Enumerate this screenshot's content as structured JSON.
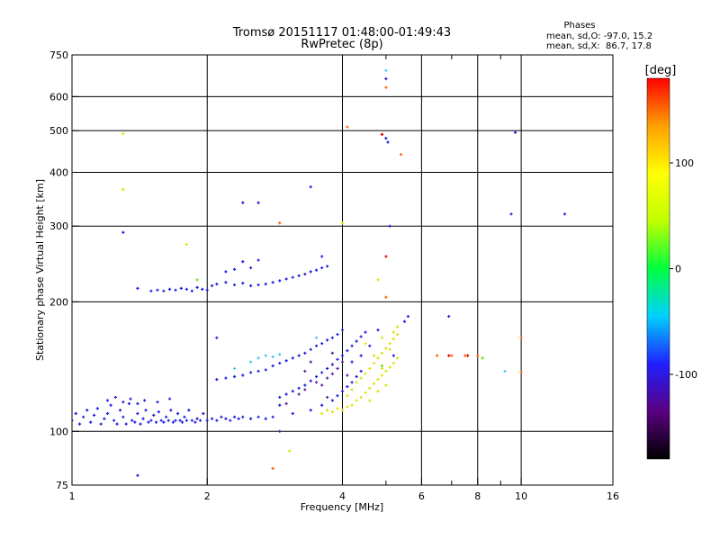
{
  "chart_data": {
    "type": "scatter",
    "title": "Tromsø 20151117 01:48:00-01:49:43",
    "subtitle": "RwPretec (8p)",
    "xlabel": "Frequency [MHz]",
    "ylabel": "Stationary phase Virtual Height [km]",
    "x_scale": "log",
    "y_scale": "log",
    "xlim": [
      1,
      16
    ],
    "ylim": [
      75,
      750
    ],
    "x_ticks": [
      {
        "value": 1,
        "label": "1"
      },
      {
        "value": 2,
        "label": "2"
      },
      {
        "value": 4,
        "label": "4"
      },
      {
        "value": 6,
        "label": "6"
      },
      {
        "value": 8,
        "label": "8"
      },
      {
        "value": 10,
        "label": "10"
      },
      {
        "value": 16,
        "label": "16"
      }
    ],
    "y_ticks": [
      {
        "value": 75,
        "label": "75"
      },
      {
        "value": 100,
        "label": "100"
      },
      {
        "value": 200,
        "label": "200"
      },
      {
        "value": 300,
        "label": "300"
      },
      {
        "value": 400,
        "label": "400"
      },
      {
        "value": 500,
        "label": "500"
      },
      {
        "value": 600,
        "label": "600"
      },
      {
        "value": 750,
        "label": "750"
      }
    ],
    "x_gridlines": [
      2,
      4,
      6,
      8,
      10
    ],
    "x_minor_ticks": [
      5,
      7,
      9
    ],
    "y_gridlines": [
      100,
      200,
      300,
      400,
      500,
      600
    ],
    "grid": true,
    "phase_stats": {
      "heading": "Phases",
      "line_o": "mean, sd,O: -97.0, 15.2",
      "line_x": "mean, sd,X:  86.7, 17.8"
    },
    "colorbar": {
      "label": "[deg]",
      "range": [
        -180,
        180
      ],
      "ticks": [
        {
          "value": 100,
          "label": "100"
        },
        {
          "value": 0,
          "label": "0"
        },
        {
          "value": -100,
          "label": "-100"
        }
      ],
      "colors": [
        "#000000",
        "#5a0080",
        "#2020ff",
        "#00d0ff",
        "#00ff40",
        "#c0ff00",
        "#ffff00",
        "#ffa000",
        "#ff0000"
      ]
    },
    "series": [
      {
        "color": "#1a1ae0",
        "points": [
          [
            1.0,
            106
          ],
          [
            1.02,
            110
          ],
          [
            1.04,
            104
          ],
          [
            1.06,
            108
          ],
          [
            1.08,
            112
          ],
          [
            1.1,
            105
          ],
          [
            1.12,
            109
          ],
          [
            1.14,
            113
          ],
          [
            1.16,
            104
          ],
          [
            1.18,
            107
          ],
          [
            1.2,
            110
          ],
          [
            1.22,
            115
          ],
          [
            1.24,
            106
          ],
          [
            1.26,
            104
          ],
          [
            1.28,
            112
          ],
          [
            1.3,
            108
          ],
          [
            1.32,
            104
          ],
          [
            1.34,
            116
          ],
          [
            1.36,
            106
          ],
          [
            1.38,
            105
          ],
          [
            1.4,
            110
          ],
          [
            1.42,
            104
          ],
          [
            1.44,
            107
          ],
          [
            1.46,
            112
          ],
          [
            1.48,
            105
          ],
          [
            1.5,
            106
          ],
          [
            1.52,
            109
          ],
          [
            1.54,
            105
          ],
          [
            1.56,
            111
          ],
          [
            1.58,
            106
          ],
          [
            1.6,
            105
          ],
          [
            1.62,
            108
          ],
          [
            1.64,
            106
          ],
          [
            1.66,
            112
          ],
          [
            1.68,
            105
          ],
          [
            1.7,
            106
          ],
          [
            1.72,
            110
          ],
          [
            1.74,
            106
          ],
          [
            1.76,
            105
          ],
          [
            1.78,
            108
          ],
          [
            1.8,
            106
          ],
          [
            1.82,
            112
          ],
          [
            1.85,
            106
          ],
          [
            1.88,
            105
          ],
          [
            1.9,
            107
          ],
          [
            1.93,
            106
          ],
          [
            1.96,
            110
          ],
          [
            2.0,
            106
          ],
          [
            2.05,
            107
          ],
          [
            2.1,
            106
          ],
          [
            2.15,
            108
          ],
          [
            2.2,
            107
          ],
          [
            2.25,
            106
          ],
          [
            2.3,
            108
          ],
          [
            2.35,
            107
          ],
          [
            2.4,
            108
          ],
          [
            2.5,
            107
          ],
          [
            2.6,
            108
          ],
          [
            2.7,
            107
          ],
          [
            2.8,
            108
          ],
          [
            1.2,
            118
          ],
          [
            1.25,
            120
          ],
          [
            1.3,
            117
          ],
          [
            1.35,
            119
          ],
          [
            1.4,
            116
          ],
          [
            1.45,
            118
          ],
          [
            1.55,
            117
          ],
          [
            1.65,
            119
          ],
          [
            2.1,
            132
          ],
          [
            2.2,
            133
          ],
          [
            2.3,
            134
          ],
          [
            2.4,
            135
          ],
          [
            2.5,
            137
          ],
          [
            2.6,
            138
          ],
          [
            2.7,
            139
          ],
          [
            2.8,
            142
          ],
          [
            2.9,
            144
          ],
          [
            3.0,
            146
          ],
          [
            3.1,
            148
          ],
          [
            3.2,
            150
          ],
          [
            3.3,
            152
          ],
          [
            3.4,
            155
          ],
          [
            3.5,
            158
          ],
          [
            3.6,
            160
          ],
          [
            3.7,
            163
          ],
          [
            3.8,
            165
          ],
          [
            3.9,
            168
          ],
          [
            4.0,
            172
          ],
          [
            2.9,
            120
          ],
          [
            3.0,
            122
          ],
          [
            3.1,
            124
          ],
          [
            3.2,
            126
          ],
          [
            3.3,
            128
          ],
          [
            3.4,
            131
          ],
          [
            3.5,
            134
          ],
          [
            3.6,
            137
          ],
          [
            3.7,
            140
          ],
          [
            3.8,
            143
          ],
          [
            3.9,
            147
          ],
          [
            4.0,
            150
          ],
          [
            4.1,
            154
          ],
          [
            4.2,
            158
          ],
          [
            4.3,
            162
          ],
          [
            4.4,
            166
          ],
          [
            4.5,
            170
          ],
          [
            4.2,
            145
          ],
          [
            4.4,
            150
          ],
          [
            4.6,
            158
          ],
          [
            3.4,
            112
          ],
          [
            3.6,
            115
          ],
          [
            3.8,
            118
          ],
          [
            3.9,
            121
          ],
          [
            4.0,
            124
          ],
          [
            4.1,
            127
          ],
          [
            4.2,
            130
          ],
          [
            4.3,
            134
          ],
          [
            4.4,
            138
          ],
          [
            1.55,
            213
          ],
          [
            1.6,
            212
          ],
          [
            1.65,
            214
          ],
          [
            1.7,
            213
          ],
          [
            1.75,
            215
          ],
          [
            1.8,
            214
          ],
          [
            1.85,
            212
          ],
          [
            1.9,
            216
          ],
          [
            1.95,
            214
          ],
          [
            2.0,
            213
          ],
          [
            2.05,
            218
          ],
          [
            2.1,
            220
          ],
          [
            2.2,
            222
          ],
          [
            2.3,
            219
          ],
          [
            2.4,
            221
          ],
          [
            2.5,
            218
          ],
          [
            2.6,
            219
          ],
          [
            2.7,
            220
          ],
          [
            2.8,
            222
          ],
          [
            2.9,
            224
          ],
          [
            3.0,
            226
          ],
          [
            3.1,
            228
          ],
          [
            3.2,
            230
          ],
          [
            3.3,
            232
          ],
          [
            3.4,
            235
          ],
          [
            3.5,
            237
          ],
          [
            3.6,
            240
          ],
          [
            3.7,
            242
          ],
          [
            2.3,
            238
          ],
          [
            2.5,
            240
          ],
          [
            2.4,
            248
          ],
          [
            2.6,
            250
          ],
          [
            2.2,
            235
          ],
          [
            1.4,
            215
          ],
          [
            1.5,
            212
          ],
          [
            1.3,
            290
          ],
          [
            2.4,
            340
          ],
          [
            2.6,
            340
          ],
          [
            3.4,
            370
          ],
          [
            5.0,
            480
          ],
          [
            5.05,
            470
          ],
          [
            5.0,
            660
          ],
          [
            5.1,
            300
          ],
          [
            9.5,
            320
          ],
          [
            9.7,
            495
          ],
          [
            12.5,
            320
          ],
          [
            6.9,
            185
          ],
          [
            3.6,
            255
          ],
          [
            2.9,
            115
          ],
          [
            3.1,
            110
          ],
          [
            5.2,
            150
          ],
          [
            5.5,
            180
          ],
          [
            5.6,
            185
          ],
          [
            1.4,
            79
          ],
          [
            2.1,
            165
          ],
          [
            4.8,
            172
          ]
        ]
      },
      {
        "color": "#e0e000",
        "points": [
          [
            3.6,
            110
          ],
          [
            3.7,
            112
          ],
          [
            3.8,
            111
          ],
          [
            3.9,
            113
          ],
          [
            4.0,
            112
          ],
          [
            4.1,
            114
          ],
          [
            4.2,
            115
          ],
          [
            4.3,
            118
          ],
          [
            4.4,
            120
          ],
          [
            4.5,
            123
          ],
          [
            4.6,
            126
          ],
          [
            4.7,
            129
          ],
          [
            4.8,
            132
          ],
          [
            4.9,
            135
          ],
          [
            5.0,
            138
          ],
          [
            5.1,
            141
          ],
          [
            5.2,
            144
          ],
          [
            5.3,
            148
          ],
          [
            4.3,
            130
          ],
          [
            4.4,
            133
          ],
          [
            4.5,
            136
          ],
          [
            4.6,
            140
          ],
          [
            4.7,
            144
          ],
          [
            4.8,
            148
          ],
          [
            4.9,
            152
          ],
          [
            5.0,
            156
          ],
          [
            5.1,
            160
          ],
          [
            5.2,
            164
          ],
          [
            5.3,
            168
          ],
          [
            4.5,
            160
          ],
          [
            4.7,
            150
          ],
          [
            4.9,
            140
          ],
          [
            5.0,
            128
          ],
          [
            5.2,
            170
          ],
          [
            5.3,
            175
          ],
          [
            5.1,
            155
          ],
          [
            4.6,
            118
          ],
          [
            4.8,
            124
          ],
          [
            4.2,
            125
          ],
          [
            4.1,
            121
          ],
          [
            1.3,
            365
          ],
          [
            1.3,
            492
          ],
          [
            1.8,
            272
          ],
          [
            4.0,
            305
          ],
          [
            3.05,
            90
          ],
          [
            4.8,
            225
          ],
          [
            4.9,
            165
          ]
        ]
      },
      {
        "color": "#40c8e8",
        "points": [
          [
            2.6,
            148
          ],
          [
            2.7,
            150
          ],
          [
            2.8,
            149
          ],
          [
            2.9,
            151
          ],
          [
            2.5,
            145
          ],
          [
            2.3,
            140
          ],
          [
            3.5,
            165
          ],
          [
            5.0,
            690
          ],
          [
            9.2,
            138
          ]
        ]
      },
      {
        "color": "#5a1aa0",
        "points": [
          [
            3.5,
            130
          ],
          [
            3.6,
            128
          ],
          [
            3.7,
            133
          ],
          [
            3.8,
            136
          ],
          [
            3.3,
            125
          ],
          [
            3.2,
            122
          ],
          [
            3.9,
            140
          ],
          [
            4.0,
            145
          ],
          [
            3.0,
            116
          ],
          [
            3.4,
            145
          ],
          [
            3.8,
            152
          ],
          [
            4.1,
            135
          ],
          [
            3.7,
            120
          ],
          [
            3.3,
            138
          ],
          [
            2.9,
            100
          ]
        ]
      },
      {
        "color": "#ff6000",
        "points": [
          [
            5.0,
            630
          ],
          [
            4.9,
            490
          ],
          [
            4.1,
            510
          ],
          [
            5.4,
            440
          ],
          [
            2.8,
            82
          ],
          [
            5.0,
            205
          ],
          [
            6.5,
            150
          ],
          [
            7.0,
            150
          ],
          [
            7.5,
            150
          ],
          [
            8.0,
            150
          ],
          [
            10.0,
            165
          ],
          [
            10.0,
            137
          ],
          [
            2.9,
            305
          ]
        ]
      },
      {
        "color": "#d00000",
        "points": [
          [
            5.0,
            255
          ],
          [
            6.9,
            150
          ],
          [
            7.6,
            150
          ],
          [
            4.9,
            490
          ]
        ]
      },
      {
        "color": "#60e000",
        "points": [
          [
            1.9,
            225
          ],
          [
            4.9,
            142
          ],
          [
            8.2,
            148
          ]
        ]
      }
    ]
  }
}
